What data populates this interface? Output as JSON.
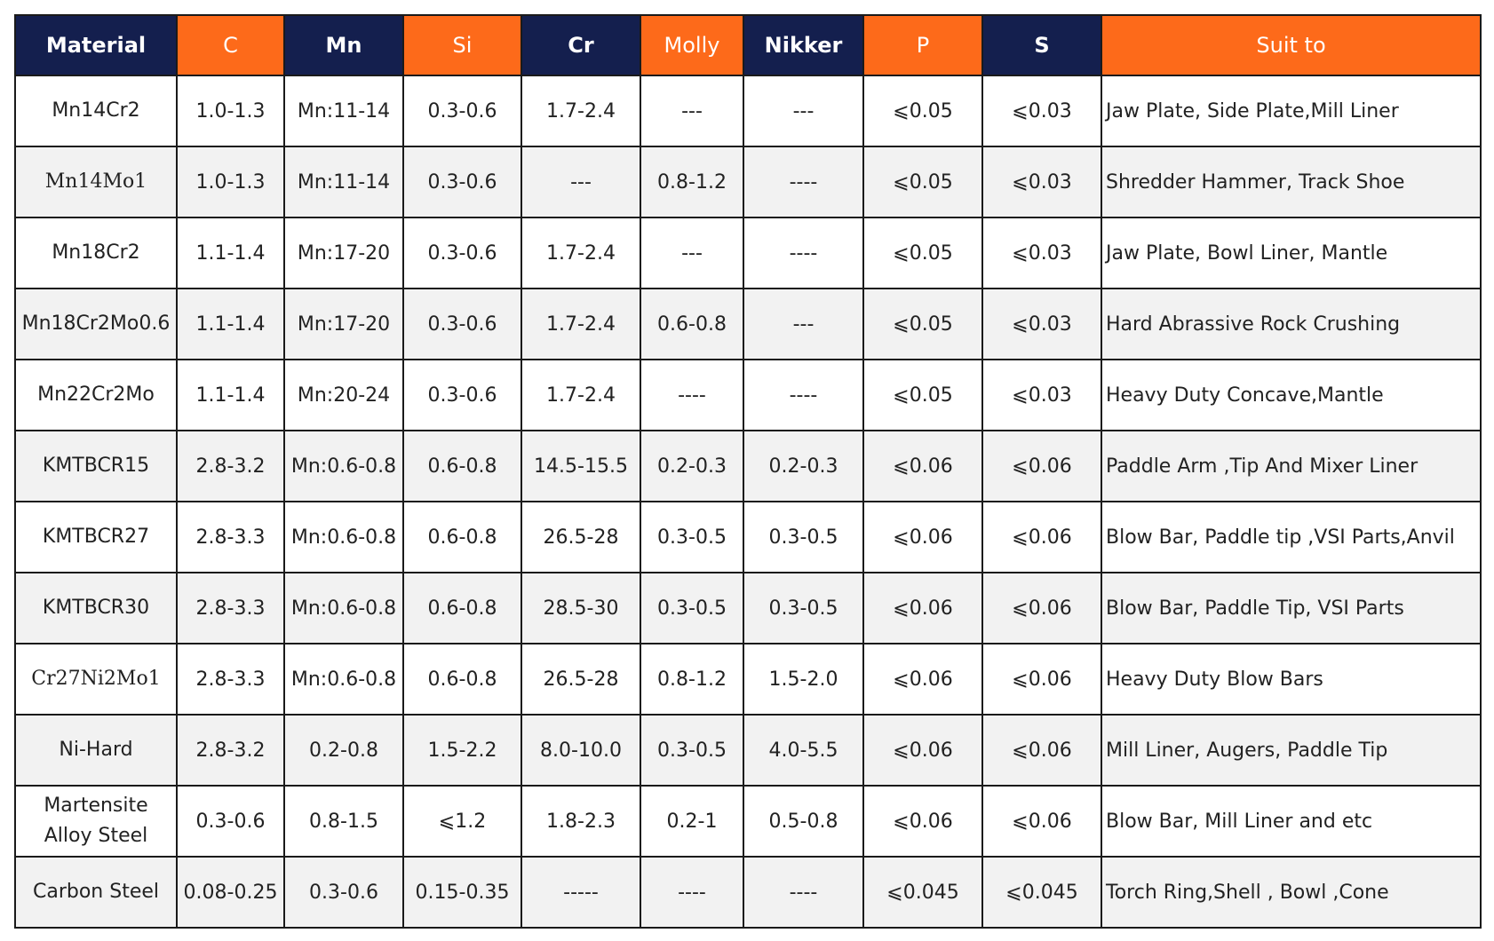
{
  "table": {
    "header": [
      "Material",
      "C",
      "Mn",
      "Si",
      "Cr",
      "Molly",
      "Nikker",
      "P",
      "S",
      "Suit to"
    ],
    "rows": [
      [
        "Mn14Cr2",
        "1.0-1.3",
        "Mn:11-14",
        "0.3-0.6",
        "1.7-2.4",
        "---",
        "---",
        "⩽0.05",
        "⩽0.03",
        "Jaw Plate, Side Plate,Mill Liner"
      ],
      [
        "Mn14Mo1",
        "1.0-1.3",
        "Mn:11-14",
        "0.3-0.6",
        "---",
        "0.8-1.2",
        "----",
        "⩽0.05",
        "⩽0.03",
        "Shredder Hammer, Track Shoe"
      ],
      [
        "Mn18Cr2",
        "1.1-1.4",
        "Mn:17-20",
        "0.3-0.6",
        "1.7-2.4",
        "---",
        "----",
        "⩽0.05",
        "⩽0.03",
        "Jaw Plate, Bowl Liner, Mantle"
      ],
      [
        "Mn18Cr2Mo0.6",
        "1.1-1.4",
        "Mn:17-20",
        "0.3-0.6",
        "1.7-2.4",
        "0.6-0.8",
        "---",
        "⩽0.05",
        "⩽0.03",
        "Hard Abrassive Rock Crushing"
      ],
      [
        "Mn22Cr2Mo",
        "1.1-1.4",
        "Mn:20-24",
        "0.3-0.6",
        "1.7-2.4",
        "----",
        "----",
        "⩽0.05",
        "⩽0.03",
        "Heavy Duty Concave,Mantle"
      ],
      [
        "KMTBCR15",
        "2.8-3.2",
        "Mn:0.6-0.8",
        "0.6-0.8",
        "14.5-15.5",
        "0.2-0.3",
        "0.2-0.3",
        "⩽0.06",
        "⩽0.06",
        "Paddle Arm ,Tip And Mixer Liner"
      ],
      [
        "KMTBCR27",
        "2.8-3.3",
        "Mn:0.6-0.8",
        "0.6-0.8",
        "26.5-28",
        "0.3-0.5",
        "0.3-0.5",
        "⩽0.06",
        "⩽0.06",
        "Blow Bar, Paddle tip ,VSI Parts,Anvil"
      ],
      [
        "KMTBCR30",
        "2.8-3.3",
        "Mn:0.6-0.8",
        "0.6-0.8",
        "28.5-30",
        "0.3-0.5",
        "0.3-0.5",
        "⩽0.06",
        "⩽0.06",
        "Blow Bar, Paddle Tip, VSI Parts"
      ],
      [
        "Cr27Ni2Mo1",
        "2.8-3.3",
        "Mn:0.6-0.8",
        "0.6-0.8",
        "26.5-28",
        "0.8-1.2",
        "1.5-2.0",
        "⩽0.06",
        "⩽0.06",
        "Heavy Duty Blow Bars"
      ],
      [
        "Ni-Hard",
        "2.8-3.2",
        "0.2-0.8",
        "1.5-2.2",
        "8.0-10.0",
        "0.3-0.5",
        "4.0-5.5",
        "⩽0.06",
        "⩽0.06",
        "Mill Liner, Augers, Paddle Tip"
      ],
      [
        "Martensite Alloy Steel",
        "0.3-0.6",
        "0.8-1.5",
        "⩽1.2",
        "1.8-2.3",
        "0.2-1",
        "0.5-0.8",
        "⩽0.06",
        "⩽0.06",
        "Blow Bar, Mill Liner and etc"
      ],
      [
        "Carbon Steel",
        "0.08-0.25",
        "0.3-0.6",
        "0.15-0.35",
        "-----",
        "----",
        "----",
        "⩽0.045",
        "⩽0.045",
        "Torch Ring,Shell , Bowl ,Cone"
      ]
    ]
  }
}
